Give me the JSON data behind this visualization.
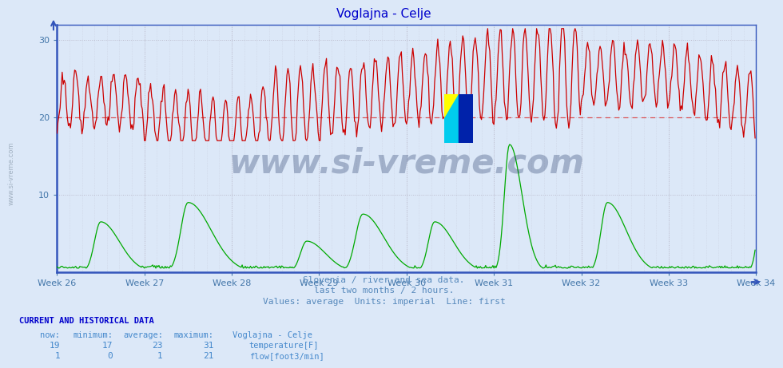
{
  "title": "Voglajna - Celje",
  "title_color": "#0000cc",
  "background_color": "#dce8f8",
  "plot_bg_color": "#dce8f8",
  "grid_color": "#bbbbcc",
  "xticklabels": [
    "Week 26",
    "Week 27",
    "Week 28",
    "Week 29",
    "Week 30",
    "Week 31",
    "Week 32",
    "Week 33",
    "Week 34"
  ],
  "yticks": [
    10,
    20,
    30
  ],
  "ylim": [
    0,
    32
  ],
  "xlim": [
    0,
    672
  ],
  "hline_y": 20,
  "hline_color": "#dd3333",
  "temp_color": "#cc0000",
  "flow_color": "#00aa00",
  "watermark_text": "www.si-vreme.com",
  "watermark_color": "#1a3060",
  "watermark_alpha": 0.3,
  "subtitle1": "Slovenia / river and sea data.",
  "subtitle2": "last two months / 2 hours.",
  "subtitle3": "Values: average  Units: imperial  Line: first",
  "subtitle_color": "#5588bb",
  "footer_title": "CURRENT AND HISTORICAL DATA",
  "footer_color": "#0000cc",
  "table_color": "#4488cc",
  "now_temp": 19,
  "min_temp": 17,
  "avg_temp": 23,
  "max_temp": 31,
  "now_flow": 1,
  "min_flow": 0,
  "avg_flow": 1,
  "max_flow": 21,
  "n_points": 672,
  "weeks": 9,
  "points_per_week": 84
}
